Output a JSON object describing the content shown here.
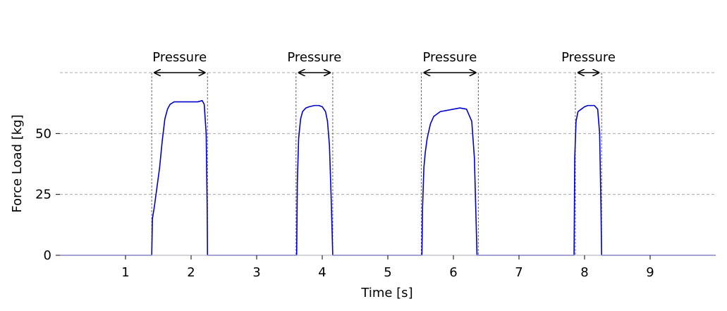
{
  "chart_data": {
    "type": "line",
    "xlabel": "Time [s]",
    "ylabel": "Force Load [kg]",
    "xlim": [
      0,
      10
    ],
    "ylim": [
      0,
      75
    ],
    "xticks": [
      1,
      2,
      3,
      4,
      5,
      6,
      7,
      8,
      9
    ],
    "yticks": [
      0,
      25,
      50
    ],
    "grid": "y-dashed",
    "reference_line_y": 75,
    "colors": {
      "series": "#0000cc",
      "grid": "#aaaaaa",
      "marker_lines": "#666666",
      "arrows": "#000000"
    },
    "series": [
      {
        "x": [
          0,
          1.4,
          1.41,
          1.44,
          1.48,
          1.52,
          1.56,
          1.6,
          1.64,
          1.68,
          1.74,
          1.8,
          1.9,
          2.0,
          2.1,
          2.17,
          2.2,
          2.23,
          2.245,
          2.25,
          3.61,
          3.62,
          3.64,
          3.67,
          3.7,
          3.75,
          3.8,
          3.88,
          3.95,
          4.0,
          4.05,
          4.08,
          4.11,
          4.14,
          4.16,
          5.52,
          5.53,
          5.55,
          5.57,
          5.6,
          5.65,
          5.7,
          5.8,
          5.9,
          6.0,
          6.1,
          6.2,
          6.28,
          6.32,
          6.36,
          7.84,
          7.85,
          7.87,
          7.9,
          7.95,
          8.0,
          8.05,
          8.1,
          8.15,
          8.2,
          8.23,
          8.25,
          8.26,
          10
        ],
        "y": [
          0,
          0,
          15,
          20,
          28,
          36,
          47,
          56,
          60,
          62,
          63,
          63,
          63,
          63,
          63,
          63.5,
          62,
          50,
          20,
          0,
          0,
          30,
          48,
          56,
          59,
          60.5,
          61,
          61.5,
          61.5,
          61,
          59,
          55,
          45,
          20,
          0,
          0,
          20,
          36,
          42,
          48,
          54,
          57,
          59,
          59.5,
          60,
          60.5,
          60,
          55,
          40,
          0,
          0,
          40,
          55,
          59,
          60,
          61,
          61.5,
          61.5,
          61.5,
          60,
          50,
          20,
          0,
          0
        ]
      }
    ],
    "annotations": [
      {
        "text": "Pressure",
        "x_start": 1.4,
        "x_end": 2.25
      },
      {
        "text": "Pressure",
        "x_start": 3.6,
        "x_end": 4.16
      },
      {
        "text": "Pressure",
        "x_start": 5.51,
        "x_end": 6.38
      },
      {
        "text": "Pressure",
        "x_start": 7.86,
        "x_end": 8.26
      }
    ]
  }
}
